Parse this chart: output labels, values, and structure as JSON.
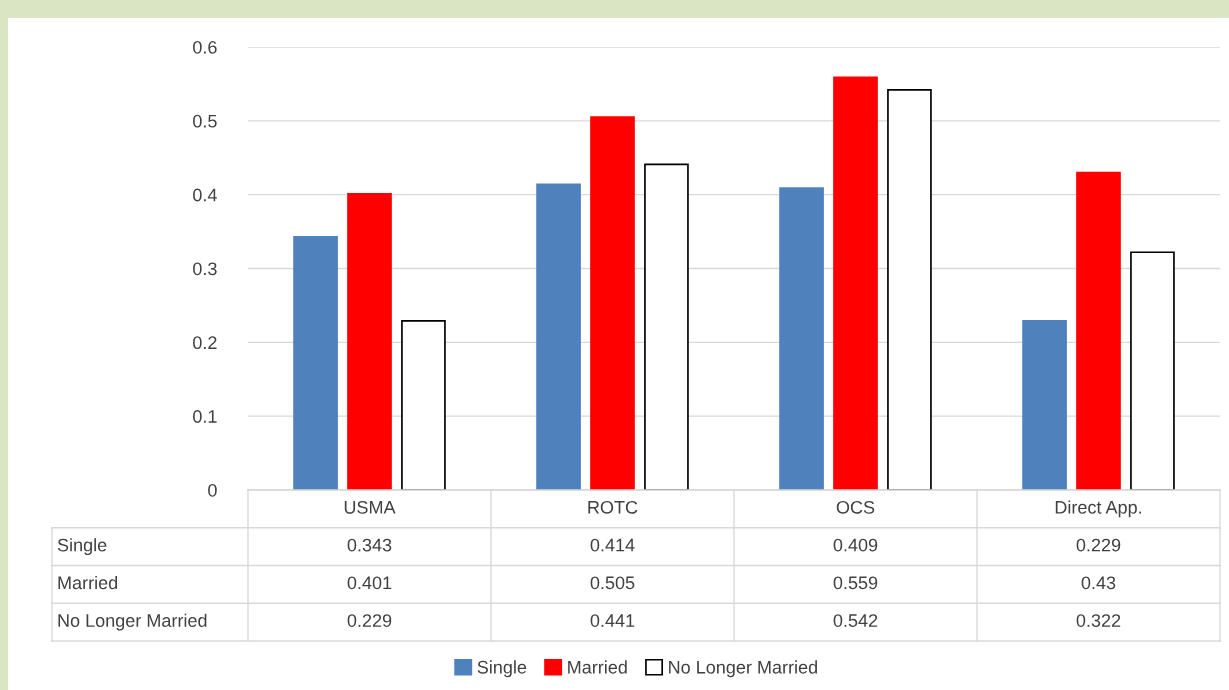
{
  "chart_data": {
    "type": "bar",
    "categories": [
      "USMA",
      "ROTC",
      "OCS",
      "Direct App."
    ],
    "series": [
      {
        "name": "Single",
        "color": "#4f81bd",
        "values": [
          0.343,
          0.414,
          0.409,
          0.229
        ]
      },
      {
        "name": "Married",
        "color": "#ff0000",
        "values": [
          0.401,
          0.505,
          0.559,
          0.43
        ]
      },
      {
        "name": "No Longer Married",
        "color": "#ffffff",
        "values": [
          0.229,
          0.441,
          0.542,
          0.322
        ]
      }
    ],
    "ylim": [
      0,
      0.6
    ],
    "yticks": [
      0,
      0.1,
      0.2,
      0.3,
      0.4,
      0.5,
      0.6
    ],
    "grid": "y",
    "legend": "bottom",
    "data_labels": true
  }
}
